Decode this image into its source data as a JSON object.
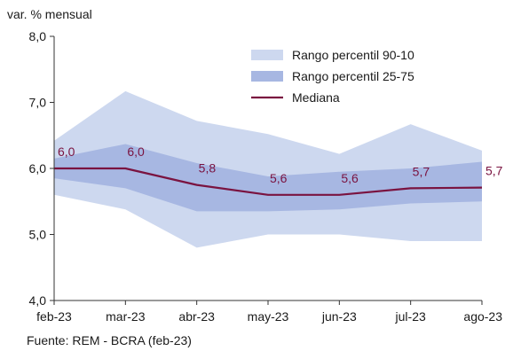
{
  "chart_data": {
    "type": "area",
    "y_unit_label": "var. % mensual",
    "source": "Fuente: REM - BCRA (feb-23)",
    "categories": [
      "feb-23",
      "mar-23",
      "abr-23",
      "may-23",
      "jun-23",
      "jul-23",
      "ago-23"
    ],
    "ylim": [
      4.0,
      8.0
    ],
    "yticks": [
      "4,0",
      "5,0",
      "6,0",
      "7,0",
      "8,0"
    ],
    "ytick_values": [
      4.0,
      5.0,
      6.0,
      7.0,
      8.0
    ],
    "grid": false,
    "legend_position": "top-right",
    "series": [
      {
        "name": "Rango percentil 90-10",
        "kind": "band",
        "color": "#cdd8ef",
        "low": [
          5.6,
          5.38,
          4.8,
          5.0,
          5.0,
          4.9,
          4.9
        ],
        "high": [
          6.42,
          7.17,
          6.72,
          6.52,
          6.22,
          6.67,
          6.27
        ]
      },
      {
        "name": "Rango percentil 25-75",
        "kind": "band",
        "color": "#a7b7e2",
        "low": [
          5.85,
          5.7,
          5.35,
          5.35,
          5.38,
          5.47,
          5.5
        ],
        "high": [
          6.15,
          6.37,
          6.08,
          5.88,
          5.95,
          6.0,
          6.1
        ]
      },
      {
        "name": "Mediana",
        "kind": "line",
        "color": "#7a1340",
        "values": [
          6.0,
          6.0,
          5.75,
          5.6,
          5.6,
          5.7,
          5.71
        ],
        "labels": [
          "6,0",
          "6,0",
          "5,8",
          "5,6",
          "5,6",
          "5,7",
          "5,7"
        ]
      }
    ]
  }
}
